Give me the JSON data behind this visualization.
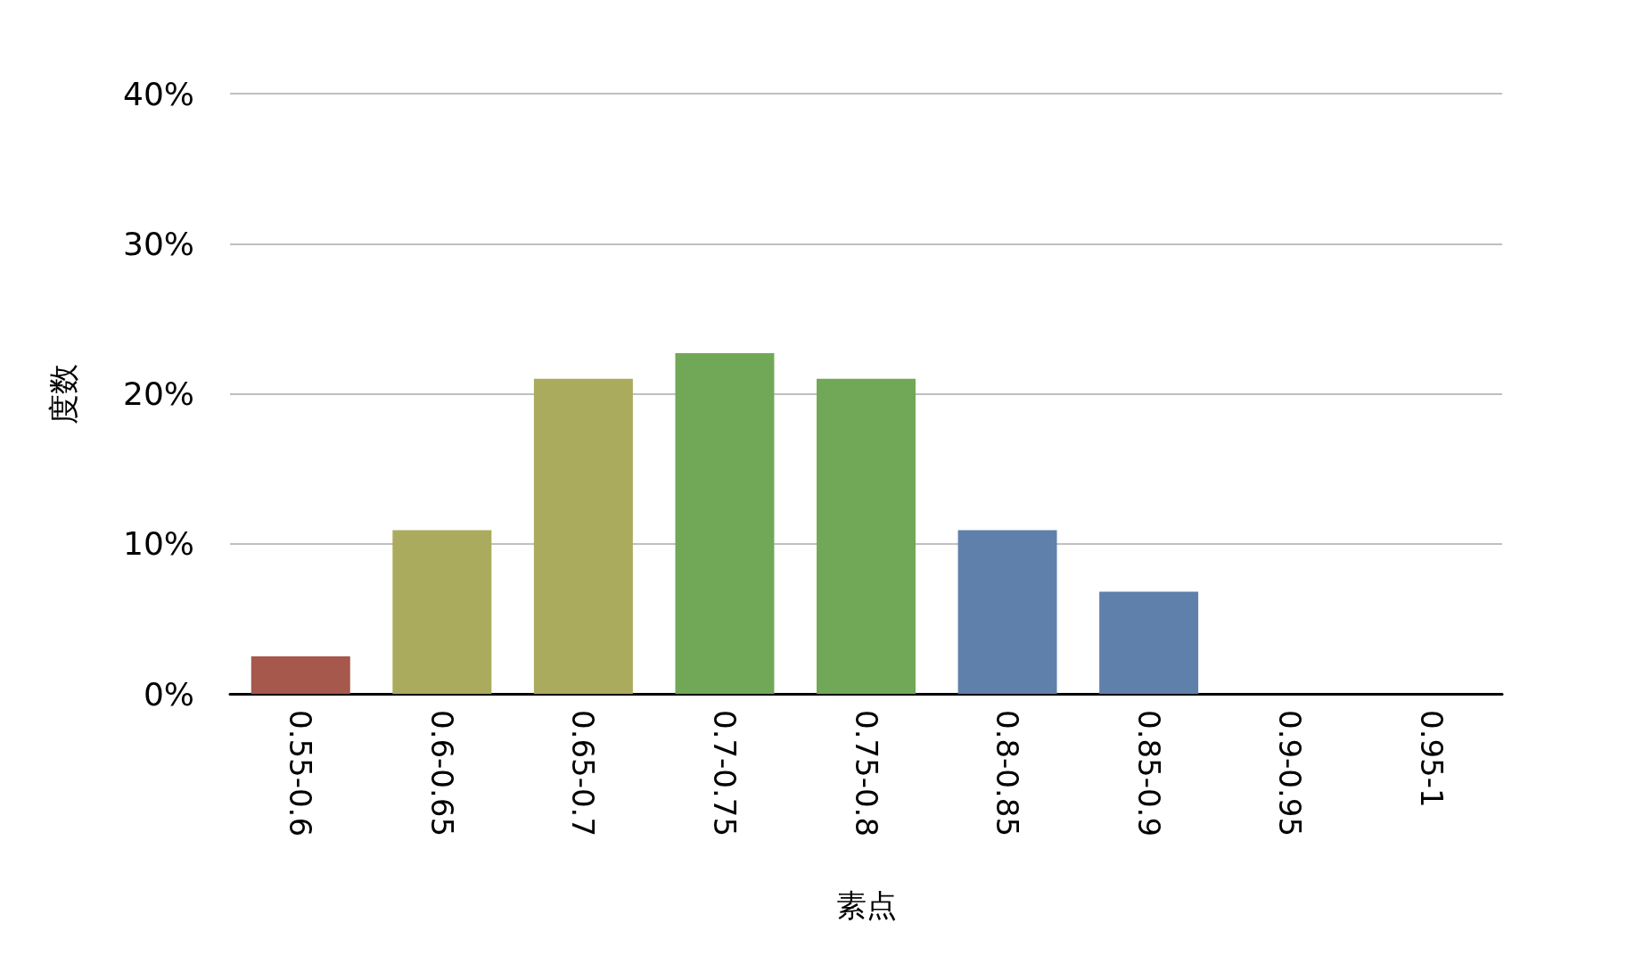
{
  "chart_data": {
    "type": "bar",
    "xlabel": "素点",
    "ylabel": "度数",
    "categories": [
      "0.55-0.6",
      "0.6-0.65",
      "0.65-0.7",
      "0.7-0.75",
      "0.75-0.8",
      "0.8-0.85",
      "0.85-0.9",
      "0.9-0.95",
      "0.95-1"
    ],
    "values": [
      2.5,
      10.9,
      21,
      22.7,
      21,
      10.9,
      6.8,
      0,
      0
    ],
    "colors": [
      "#a5584b",
      "#abab5e",
      "#abab5e",
      "#71a857",
      "#71a857",
      "#5f80ab",
      "#5f80ab",
      "#5f80ab",
      "#5f80ab"
    ],
    "ylim": [
      0,
      40
    ],
    "yticks": [
      {
        "value": 0,
        "label": "0%"
      },
      {
        "value": 10,
        "label": "10%"
      },
      {
        "value": 20,
        "label": "20%"
      },
      {
        "value": 30,
        "label": "30%"
      },
      {
        "value": 40,
        "label": "40%"
      }
    ],
    "grid": "y"
  }
}
